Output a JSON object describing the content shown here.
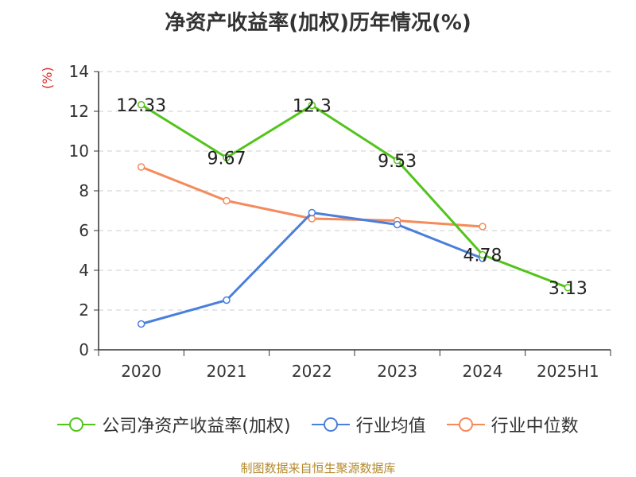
{
  "chart_data": {
    "type": "line",
    "title": "净资产收益率(加权)历年情况(%)",
    "ylabel": "(%)",
    "categories": [
      "2020",
      "2021",
      "2022",
      "2023",
      "2024",
      "2025H1"
    ],
    "ylim": [
      0,
      14
    ],
    "yticks": [
      0,
      2,
      4,
      6,
      8,
      10,
      12,
      14
    ],
    "grid": true,
    "legend_position": "bottom",
    "series": [
      {
        "name": "公司净资产收益率(加权)",
        "color": "#52c41a",
        "values": [
          12.33,
          9.67,
          12.3,
          9.53,
          4.78,
          3.13
        ],
        "labels": [
          "12.33",
          "9.67",
          "12.3",
          "9.53",
          "4.78",
          "3.13"
        ]
      },
      {
        "name": "行业均值",
        "color": "#4a7fdc",
        "values": [
          1.3,
          2.5,
          6.9,
          6.3,
          4.6,
          null
        ]
      },
      {
        "name": "行业中位数",
        "color": "#f58a5a",
        "values": [
          9.2,
          7.5,
          6.6,
          6.5,
          6.2,
          null
        ]
      }
    ]
  },
  "footer": "制图数据来自恒生聚源数据库"
}
